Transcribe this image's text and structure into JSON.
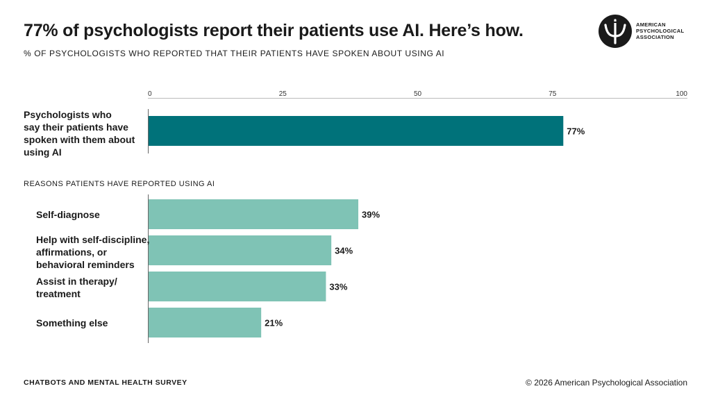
{
  "title": "77% of psychologists report their patients use AI. Here’s how.",
  "subtitle": "% of psychologists who reported that their patients have spoken about using AI",
  "logo": {
    "icon": "psi-logo-icon",
    "lines": [
      "AMERICAN",
      "PSYCHOLOGICAL",
      "ASSOCIATION"
    ]
  },
  "section_label": "Reasons patients have reported using AI",
  "footer": {
    "left": "CHATBOTS AND MENTAL HEALTH SURVEY",
    "right": "© 2026 American Psychological Association"
  },
  "colors": {
    "primary_bar": "#00727a",
    "secondary_bar": "#7fc3b5",
    "axis": "#666666"
  },
  "chart_data": {
    "type": "bar",
    "orientation": "horizontal",
    "xlim": [
      0,
      100
    ],
    "ticks": [
      0,
      25,
      50,
      75,
      100
    ],
    "grid": false,
    "groups": [
      {
        "name": "",
        "categories": [
          "Psychologists who\nsay their patients have\nspoken with them about\nusing AI"
        ],
        "values": [
          77
        ],
        "value_labels": [
          "77%"
        ]
      },
      {
        "name": "Reasons patients have reported using AI",
        "categories": [
          "Self-diagnose",
          "Help with self-discipline,\naffirmations, or\nbehavioral reminders",
          "Assist in therapy/\ntreatment",
          "Something else"
        ],
        "values": [
          39,
          34,
          33,
          21
        ],
        "value_labels": [
          "39%",
          "34%",
          "33%",
          "21%"
        ]
      }
    ]
  }
}
